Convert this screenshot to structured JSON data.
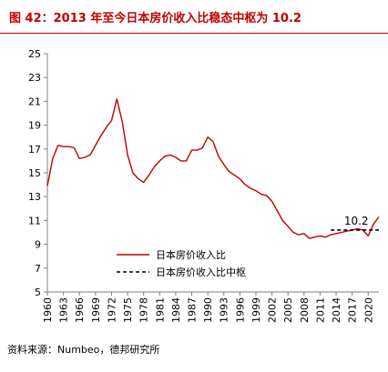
{
  "header": {
    "title": "图 42：2013 年至今日本房价收入比稳态中枢为 10.2"
  },
  "footer": {
    "source": "资料来源：Numbeo，德邦研究所"
  },
  "chart_data": {
    "type": "line",
    "title": "图 42：2013 年至今日本房价收入比稳态中枢为 10.2",
    "xlabel": "",
    "ylabel": "",
    "ylim": [
      5,
      25
    ],
    "yticks": [
      5,
      7,
      9,
      11,
      13,
      15,
      17,
      19,
      21,
      23,
      25
    ],
    "xlim": [
      1960,
      2022
    ],
    "xticks": [
      1960,
      1963,
      1966,
      1969,
      1972,
      1975,
      1978,
      1981,
      1984,
      1987,
      1990,
      1993,
      1996,
      1999,
      2002,
      2005,
      2008,
      2011,
      2014,
      2017,
      2020
    ],
    "grid": false,
    "legend_placement": "lower-center",
    "series": [
      {
        "name": "日本房价收入比",
        "style": "solid",
        "color": "#c00000",
        "x": [
          1960,
          1961,
          1962,
          1963,
          1964,
          1965,
          1966,
          1967,
          1968,
          1969,
          1970,
          1971,
          1972,
          1973,
          1974,
          1975,
          1976,
          1977,
          1978,
          1979,
          1980,
          1981,
          1982,
          1983,
          1984,
          1985,
          1986,
          1987,
          1988,
          1989,
          1990,
          1991,
          1992,
          1993,
          1994,
          1995,
          1996,
          1997,
          1998,
          1999,
          2000,
          2001,
          2002,
          2003,
          2004,
          2005,
          2006,
          2007,
          2008,
          2009,
          2010,
          2011,
          2012,
          2013,
          2014,
          2015,
          2016,
          2017,
          2018,
          2019,
          2020,
          2021,
          2022
        ],
        "values": [
          13.9,
          16.2,
          17.3,
          17.2,
          17.2,
          17.1,
          16.2,
          16.3,
          16.5,
          17.3,
          18.1,
          18.8,
          19.4,
          21.2,
          19.3,
          16.5,
          15.0,
          14.5,
          14.2,
          14.8,
          15.5,
          16.0,
          16.4,
          16.5,
          16.3,
          16.0,
          16.0,
          16.9,
          16.9,
          17.1,
          18.0,
          17.6,
          16.4,
          15.7,
          15.1,
          14.8,
          14.5,
          14.0,
          13.7,
          13.5,
          13.2,
          13.1,
          12.6,
          11.8,
          11.0,
          10.5,
          10.0,
          9.8,
          9.9,
          9.5,
          9.6,
          9.7,
          9.6,
          9.8,
          9.9,
          10.0,
          10.1,
          10.2,
          10.3,
          10.2,
          9.7,
          10.7,
          11.3
        ]
      },
      {
        "name": "日本房价收入比中枢",
        "style": "dashed",
        "color": "#000000",
        "x": [
          2013,
          2022
        ],
        "values": [
          10.2,
          10.2
        ]
      }
    ],
    "annotations": [
      {
        "text": "10.2",
        "x": 2015.5,
        "y": 10.2
      }
    ]
  }
}
